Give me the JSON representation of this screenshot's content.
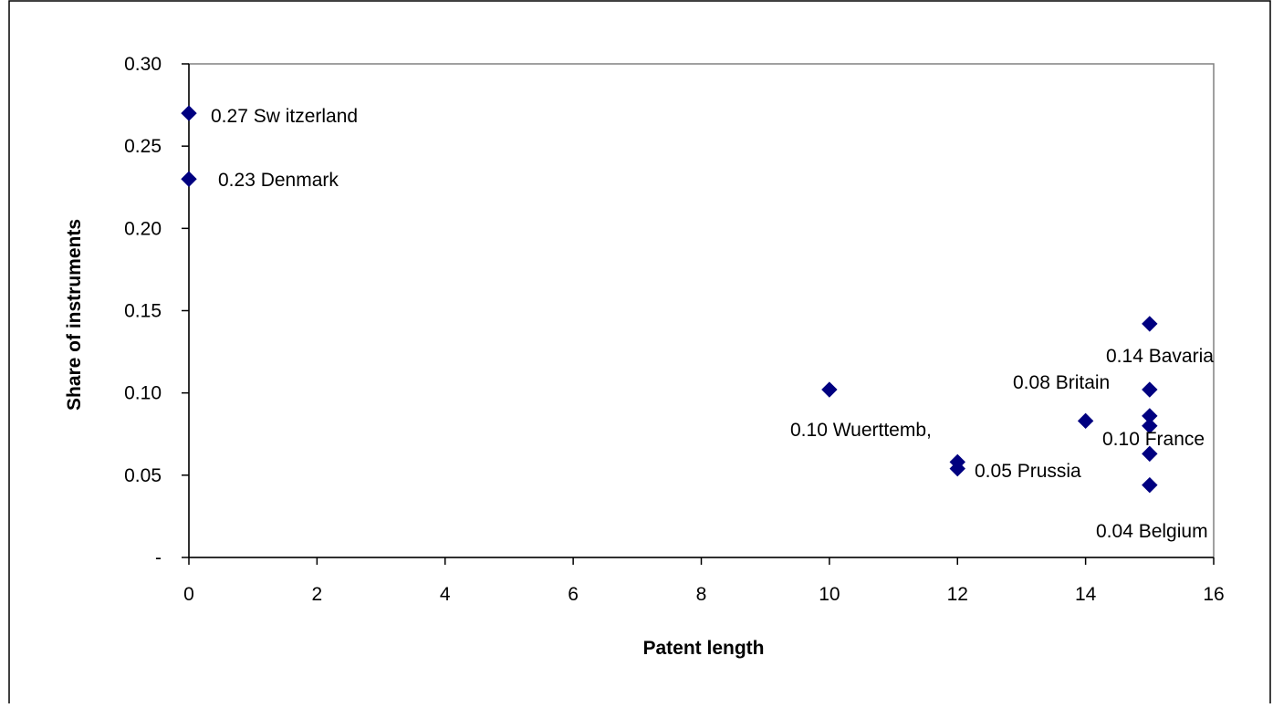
{
  "chart_data": {
    "type": "scatter",
    "title": "",
    "xlabel": "Patent length",
    "ylabel": "Share of instruments",
    "xlim": [
      0,
      16
    ],
    "ylim": [
      0,
      0.3
    ],
    "x_ticks": [
      "0",
      "2",
      "4",
      "6",
      "8",
      "10",
      "12",
      "14",
      "16"
    ],
    "y_ticks": [
      "-",
      "0.05",
      "0.10",
      "0.15",
      "0.20",
      "0.25",
      "0.30"
    ],
    "grid": false,
    "legend": "none",
    "marker_color": "#000080",
    "points": [
      {
        "x": 0,
        "y": 0.27
      },
      {
        "x": 0,
        "y": 0.23
      },
      {
        "x": 10,
        "y": 0.102
      },
      {
        "x": 12,
        "y": 0.058
      },
      {
        "x": 12,
        "y": 0.054
      },
      {
        "x": 14,
        "y": 0.083
      },
      {
        "x": 15,
        "y": 0.142
      },
      {
        "x": 15,
        "y": 0.102
      },
      {
        "x": 15,
        "y": 0.086
      },
      {
        "x": 15,
        "y": 0.08
      },
      {
        "x": 15,
        "y": 0.063
      },
      {
        "x": 15,
        "y": 0.044
      }
    ],
    "annotations": [
      "0.27 Sw itzerland",
      "0.23 Denmark",
      "0.10 Wuerttemb,",
      "0.05 Prussia",
      "0.14 Bavaria",
      "0.08 Britain",
      "0.10 France",
      "0.04 Belgium"
    ]
  }
}
